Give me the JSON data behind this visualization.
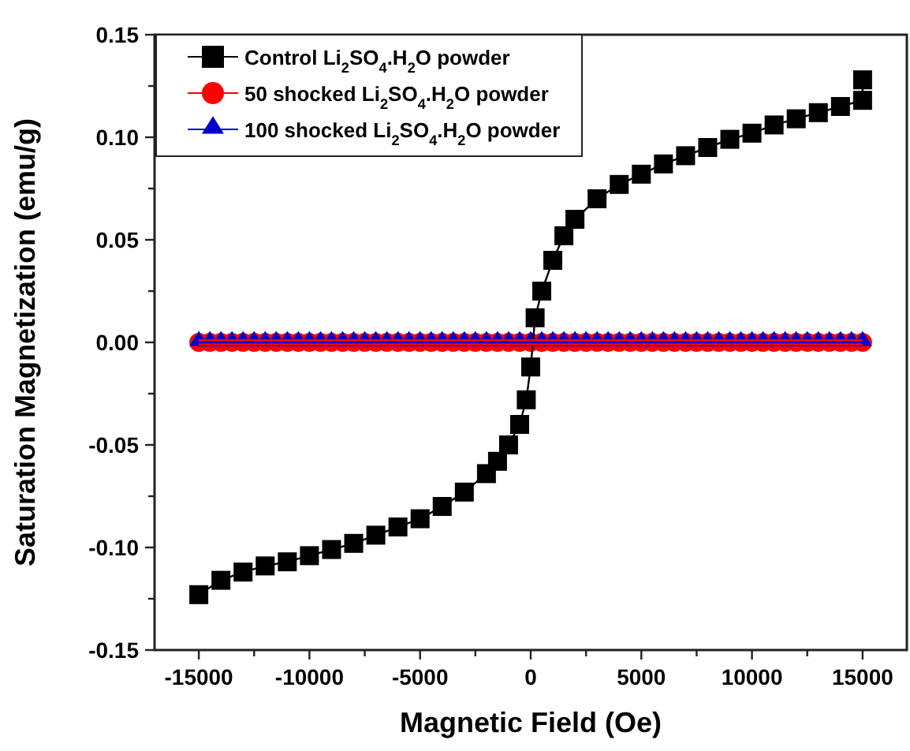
{
  "chart_data": {
    "type": "line",
    "xlabel": "Magnetic Field (Oe)",
    "ylabel": "Saturation Magnetization (emu/g)",
    "xlim": [
      -17000,
      17000
    ],
    "ylim": [
      -0.15,
      0.15
    ],
    "xticks": [
      -15000,
      {
        "value": -12500,
        "label": null
      },
      -10000,
      {
        "value": -7500,
        "label": null
      },
      -5000,
      {
        "value": -2500,
        "label": null
      },
      0,
      {
        "value": 2500,
        "label": null
      },
      5000,
      {
        "value": 7500,
        "label": null
      },
      10000,
      {
        "value": 12500,
        "label": null
      },
      15000
    ],
    "yticks": [
      {
        "value": -0.15,
        "label": "-0.15"
      },
      {
        "value": -0.125,
        "label": null
      },
      {
        "value": -0.1,
        "label": "-0.10"
      },
      {
        "value": -0.075,
        "label": null
      },
      {
        "value": -0.05,
        "label": "-0.05"
      },
      {
        "value": -0.025,
        "label": null
      },
      {
        "value": 0,
        "label": "0.00"
      },
      {
        "value": 0.025,
        "label": null
      },
      {
        "value": 0.05,
        "label": "0.05"
      },
      {
        "value": 0.075,
        "label": null
      },
      {
        "value": 0.1,
        "label": "0.10"
      },
      {
        "value": 0.125,
        "label": null
      },
      {
        "value": 0.15,
        "label": "0.15"
      }
    ],
    "grid": false,
    "legend": "top left",
    "line_style": "solid",
    "series": [
      {
        "name": "Control Li$_{2}$SO$_{4}$.H$_{2}$O powder",
        "color": "#000000",
        "marker": "square",
        "x": [
          -15000,
          -14000,
          -13000,
          -12000,
          -11000,
          -10000,
          -9000,
          -8000,
          -7000,
          -6000,
          -5000,
          -4000,
          -3000,
          -2000,
          -1500,
          -1000,
          -500,
          -200,
          0,
          200,
          500,
          1000,
          1500,
          2000,
          3000,
          4000,
          5000,
          6000,
          7000,
          8000,
          9000,
          10000,
          11000,
          12000,
          13000,
          14000,
          15000,
          15000
        ],
        "values": [
          -0.123,
          -0.116,
          -0.112,
          -0.109,
          -0.107,
          -0.104,
          -0.101,
          -0.098,
          -0.094,
          -0.09,
          -0.086,
          -0.08,
          -0.073,
          -0.064,
          -0.058,
          -0.05,
          -0.04,
          -0.028,
          -0.012,
          0.012,
          0.025,
          0.04,
          0.052,
          0.06,
          0.07,
          0.077,
          0.082,
          0.087,
          0.091,
          0.095,
          0.099,
          0.102,
          0.106,
          0.109,
          0.112,
          0.115,
          0.118,
          0.128
        ]
      },
      {
        "name": "50 shocked Li$_{2}$SO$_{4}$.H$_{2}$O powder",
        "color": "#ff0000",
        "marker": "circle",
        "x": [
          -15000,
          -14500,
          -14000,
          -13500,
          -13000,
          -12500,
          -12000,
          -11500,
          -11000,
          -10500,
          -10000,
          -9500,
          -9000,
          -8500,
          -8000,
          -7500,
          -7000,
          -6500,
          -6000,
          -5500,
          -5000,
          -4500,
          -4000,
          -3500,
          -3000,
          -2500,
          -2000,
          -1500,
          -1000,
          -500,
          0,
          500,
          1000,
          1500,
          2000,
          2500,
          3000,
          3500,
          4000,
          4500,
          5000,
          5500,
          6000,
          6500,
          7000,
          7500,
          8000,
          8500,
          9000,
          9500,
          10000,
          10500,
          11000,
          11500,
          12000,
          12500,
          13000,
          13500,
          14000,
          14500,
          15000
        ],
        "values": [
          0,
          0,
          0,
          0,
          0,
          0,
          0,
          0,
          0,
          0,
          0,
          0,
          0,
          0,
          0,
          0,
          0,
          0,
          0,
          0,
          0,
          0,
          0,
          0,
          0,
          0,
          0,
          0,
          0,
          0,
          0,
          0,
          0,
          0,
          0,
          0,
          0,
          0,
          0,
          0,
          0,
          0,
          0,
          0,
          0,
          0,
          0,
          0,
          0,
          0,
          0,
          0,
          0,
          0,
          0,
          0,
          0,
          0,
          0,
          0,
          0
        ]
      },
      {
        "name": "100 shocked Li$_{2}$SO$_{4}$.H$_{2}$O powder",
        "color": "#0000cc",
        "marker": "triangle",
        "x": [
          -15000,
          -14500,
          -14000,
          -13500,
          -13000,
          -12500,
          -12000,
          -11500,
          -11000,
          -10500,
          -10000,
          -9500,
          -9000,
          -8500,
          -8000,
          -7500,
          -7000,
          -6500,
          -6000,
          -5500,
          -5000,
          -4500,
          -4000,
          -3500,
          -3000,
          -2500,
          -2000,
          -1500,
          -1000,
          -500,
          0,
          500,
          1000,
          1500,
          2000,
          2500,
          3000,
          3500,
          4000,
          4500,
          5000,
          5500,
          6000,
          6500,
          7000,
          7500,
          8000,
          8500,
          9000,
          9500,
          10000,
          10500,
          11000,
          11500,
          12000,
          12500,
          13000,
          13500,
          14000,
          14500,
          15000
        ],
        "values": [
          0,
          0,
          0,
          0,
          0,
          0,
          0,
          0,
          0,
          0,
          0,
          0,
          0,
          0,
          0,
          0,
          0,
          0,
          0,
          0,
          0,
          0,
          0,
          0,
          0,
          0,
          0,
          0,
          0,
          0,
          0,
          0,
          0,
          0,
          0,
          0,
          0,
          0,
          0,
          0,
          0,
          0,
          0,
          0,
          0,
          0,
          0,
          0,
          0,
          0,
          0,
          0,
          0,
          0,
          0,
          0,
          0,
          0,
          0,
          0,
          0
        ]
      }
    ]
  }
}
